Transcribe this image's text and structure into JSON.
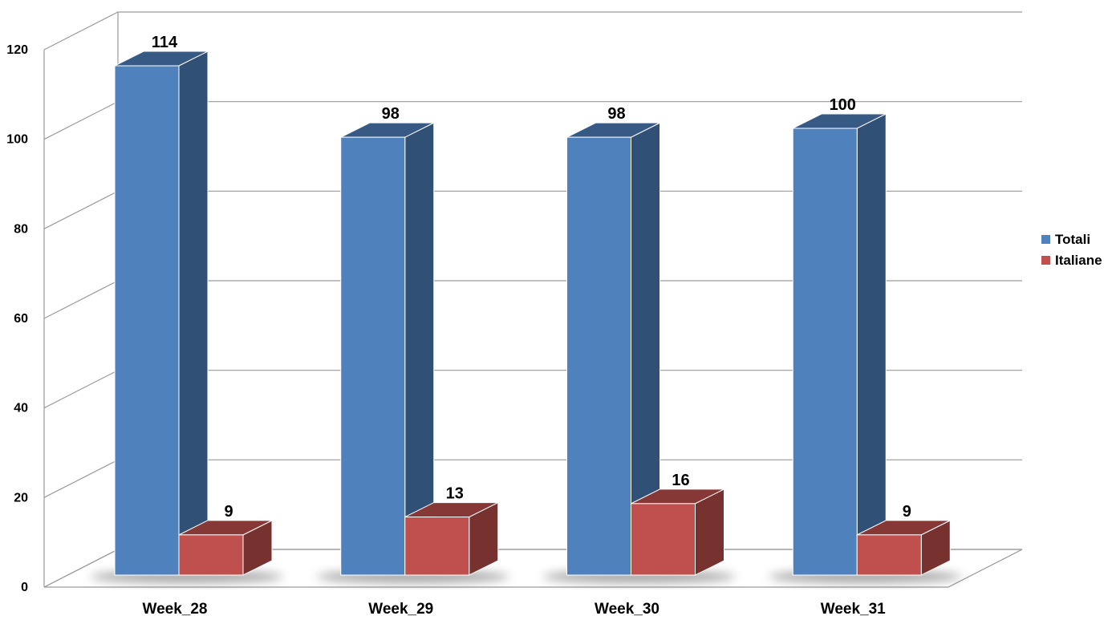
{
  "chart_data": {
    "type": "bar",
    "categories": [
      "Week_28",
      "Week_29",
      "Week_30",
      "Week_31"
    ],
    "series": [
      {
        "name": "Totali",
        "values": [
          114,
          98,
          98,
          100
        ],
        "color": "#4F81BD"
      },
      {
        "name": "Italiane",
        "values": [
          9,
          13,
          16,
          9
        ],
        "color": "#C0504D"
      }
    ],
    "ylim": [
      0,
      120
    ],
    "y_ticks": [
      "0",
      "20",
      "40",
      "60",
      "80",
      "100",
      "120"
    ],
    "grid": true,
    "legend_position": "right",
    "style": "3d-clustered-column",
    "data_labels": true
  }
}
